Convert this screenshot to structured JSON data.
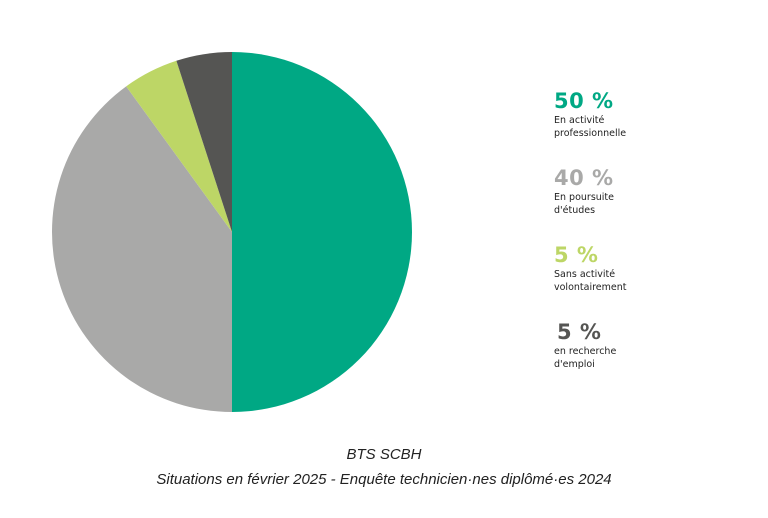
{
  "chart_data": {
    "type": "pie",
    "title": "BTS SCBH",
    "subtitle": "Situations en février 2025 - Enquête technicien·nes diplômé·es 2024",
    "slices": [
      {
        "value_label": "50 %",
        "value": 50,
        "label": "En activité professionnelle",
        "color": "#00a884"
      },
      {
        "value_label": "40 %",
        "value": 40,
        "label": "En poursuite d'études",
        "color": "#a9a9a8"
      },
      {
        "value_label": "5 %",
        "value": 5,
        "label": "Sans activité volontairement",
        "color": "#bdd666"
      },
      {
        "value_label": "5 %",
        "value": 5,
        "label": "en recherche d'emploi",
        "color": "#555553"
      }
    ],
    "legend_position": "right"
  }
}
